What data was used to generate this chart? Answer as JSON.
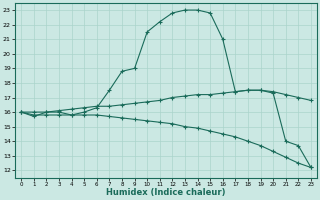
{
  "xlabel": "Humidex (Indice chaleur)",
  "background_color": "#cbe8e3",
  "line_color": "#1a6b5a",
  "grid_color": "#aad4cc",
  "hours": [
    0,
    1,
    2,
    3,
    4,
    5,
    6,
    7,
    8,
    9,
    10,
    11,
    12,
    13,
    14,
    15,
    16,
    17,
    18,
    19,
    20,
    21,
    22,
    23
  ],
  "max_line": [
    16.0,
    15.7,
    16.0,
    16.0,
    15.8,
    16.0,
    16.3,
    17.5,
    18.8,
    19.0,
    21.5,
    22.2,
    22.8,
    23.0,
    23.0,
    22.8,
    21.0,
    17.4,
    17.5,
    17.5,
    17.3,
    14.0,
    13.7,
    12.2
  ],
  "mean_line": [
    16.0,
    16.0,
    16.0,
    16.1,
    16.2,
    16.3,
    16.4,
    16.4,
    16.5,
    16.6,
    16.7,
    16.8,
    17.0,
    17.1,
    17.2,
    17.2,
    17.3,
    17.4,
    17.5,
    17.5,
    17.4,
    17.2,
    17.0,
    16.8
  ],
  "min_line": [
    16.0,
    15.8,
    15.8,
    15.8,
    15.8,
    15.8,
    15.8,
    15.7,
    15.6,
    15.5,
    15.4,
    15.3,
    15.2,
    15.0,
    14.9,
    14.7,
    14.5,
    14.3,
    14.0,
    13.7,
    13.3,
    12.9,
    12.5,
    12.2
  ],
  "ylim": [
    11.5,
    23.5
  ],
  "xlim": [
    -0.5,
    23.5
  ],
  "yticks": [
    12,
    13,
    14,
    15,
    16,
    17,
    18,
    19,
    20,
    21,
    22,
    23
  ],
  "xticks": [
    0,
    1,
    2,
    3,
    4,
    5,
    6,
    7,
    8,
    9,
    10,
    11,
    12,
    13,
    14,
    15,
    16,
    17,
    18,
    19,
    20,
    21,
    22,
    23
  ]
}
